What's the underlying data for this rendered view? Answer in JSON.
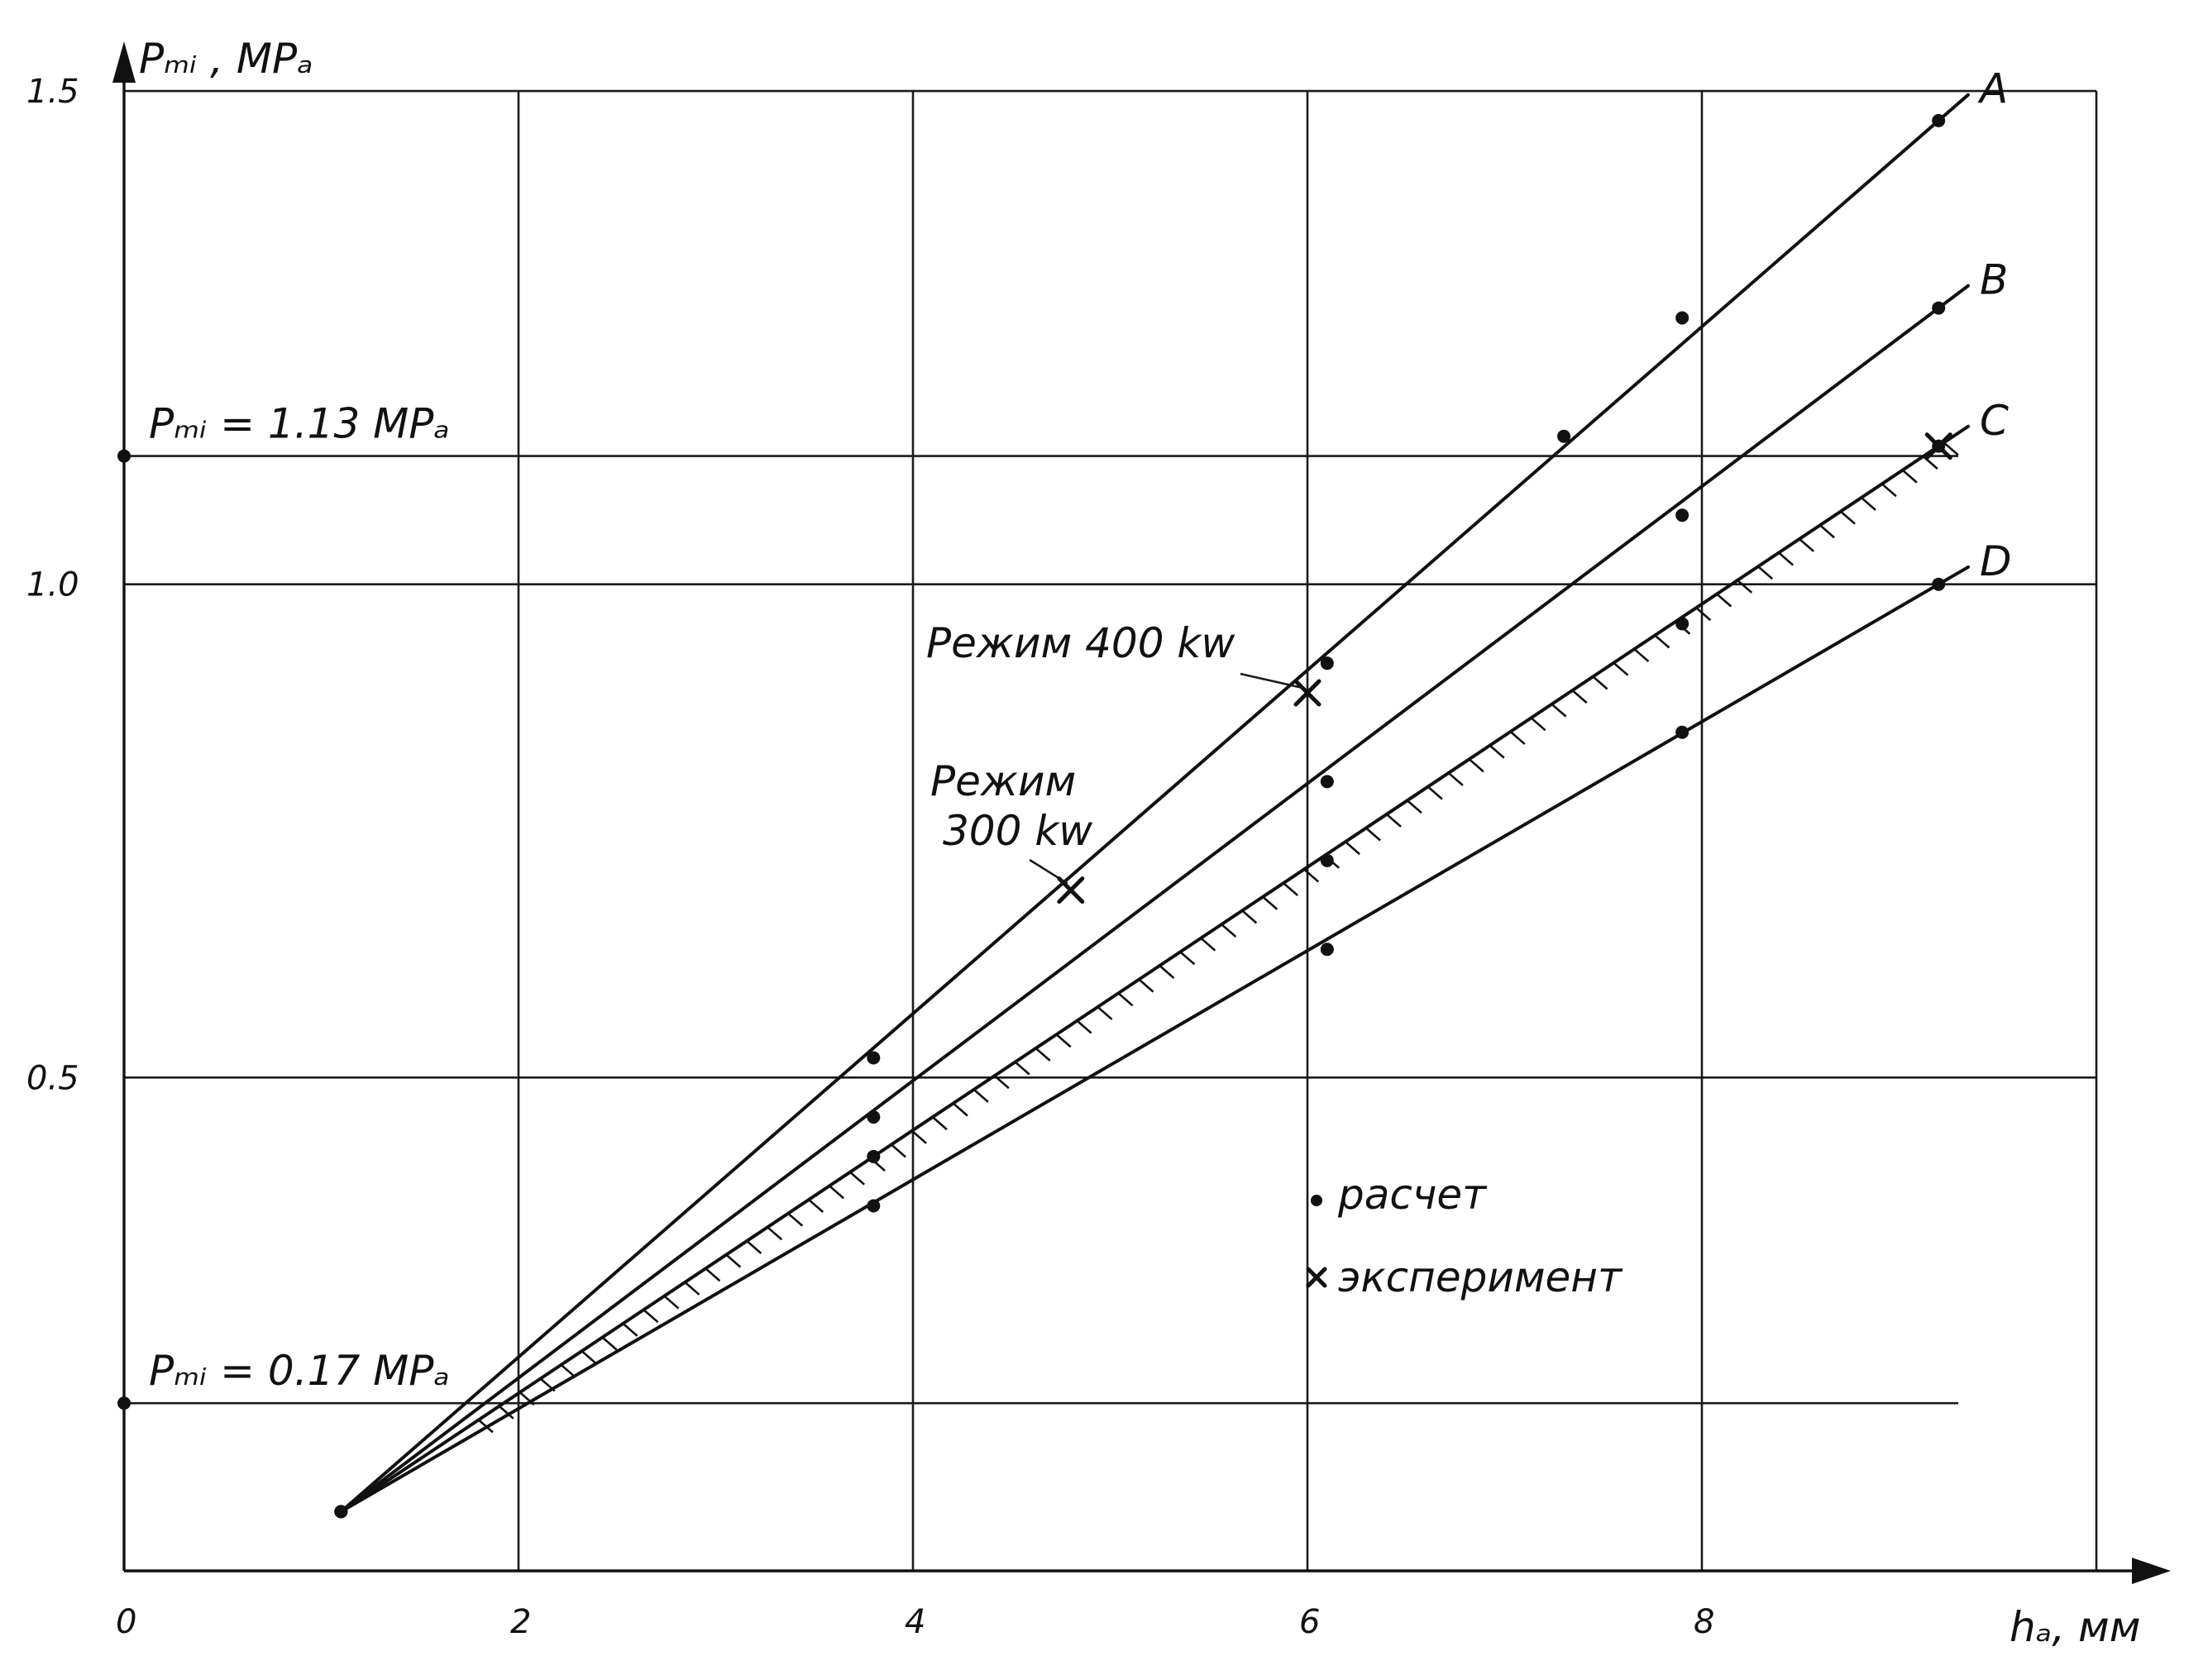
{
  "chart_data": {
    "type": "line",
    "title": "",
    "xlabel": "hₐ, мм",
    "ylabel": "Pₘᵢ , MPₐ",
    "xlim": [
      0,
      10
    ],
    "ylim": [
      0,
      1.5
    ],
    "x_ticks": [
      "0",
      "2",
      "4",
      "6",
      "8"
    ],
    "y_ticks": [
      "0.5",
      "1.0",
      "1.5"
    ],
    "grid": true,
    "series": [
      {
        "name": "A",
        "x": [
          1.1,
          3.8,
          6.1,
          7.3,
          7.9,
          9.2
        ],
        "y": [
          0.06,
          0.52,
          0.92,
          1.15,
          1.27,
          1.47
        ]
      },
      {
        "name": "B",
        "x": [
          1.1,
          3.8,
          6.1,
          7.9,
          9.2
        ],
        "y": [
          0.06,
          0.46,
          0.8,
          1.07,
          1.28
        ]
      },
      {
        "name": "C",
        "x": [
          1.1,
          3.8,
          6.1,
          7.9,
          9.2
        ],
        "y": [
          0.06,
          0.42,
          0.72,
          0.96,
          1.14
        ]
      },
      {
        "name": "D",
        "x": [
          1.1,
          3.8,
          6.1,
          7.9,
          9.2
        ],
        "y": [
          0.06,
          0.37,
          0.63,
          0.85,
          1.0
        ]
      }
    ],
    "experiment": [
      {
        "x": 4.8,
        "y": 0.69
      },
      {
        "x": 6.0,
        "y": 0.89
      },
      {
        "x": 9.2,
        "y": 1.14
      }
    ],
    "reference_lines": [
      {
        "y": 1.13,
        "label": "Pₘᵢ = 1.13 MPₐ"
      },
      {
        "y": 0.17,
        "label": "Pₘᵢ = 0.17 MPₐ"
      }
    ],
    "annotations": [
      {
        "text": "Режим 400 kw",
        "x": 6.0,
        "y": 0.89
      },
      {
        "text": "Режим",
        "x": 4.8,
        "y": 0.69
      },
      {
        "text": "300 kw",
        "x": 4.8,
        "y": 0.69
      }
    ],
    "legend": [
      {
        "symbol": "dot",
        "label": "расчет"
      },
      {
        "symbol": "cross",
        "label": "эксперимент"
      }
    ],
    "legend_position": "bottom-right"
  }
}
